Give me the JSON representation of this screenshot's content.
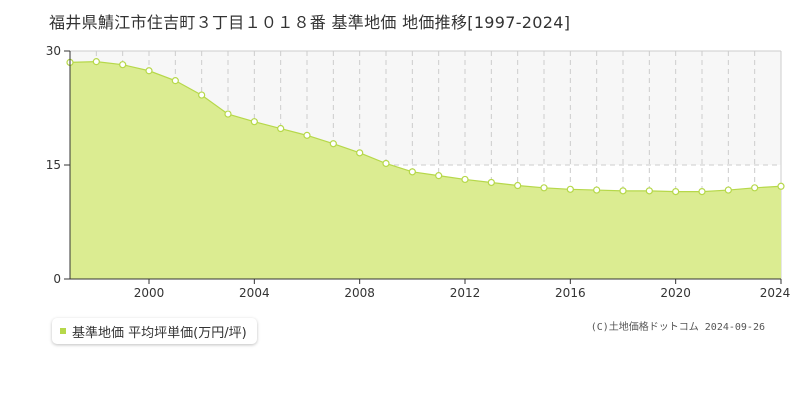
{
  "title": "福井県鯖江市住吉町３丁目１０１８番 基準地価 地価推移[1997-2024]",
  "legend_label": "基準地価 平均坪単価(万円/坪)",
  "copyright": "(C)土地価格ドットコム 2024-09-26",
  "colors": {
    "fill": "#dbec91",
    "line": "#b6d84a",
    "grid": "#cccccc",
    "band": "#f7f7f7"
  },
  "chart_data": {
    "type": "area",
    "title": "",
    "xlabel": "",
    "ylabel": "",
    "xlim": [
      1997,
      2024
    ],
    "ylim": [
      0,
      30
    ],
    "x_ticks": [
      "2000",
      "2004",
      "2008",
      "2012",
      "2016",
      "2020",
      "2024"
    ],
    "y_ticks": [
      "0",
      "15",
      "30"
    ],
    "grid": true,
    "legend_position": "bottom-left",
    "series": [
      {
        "name": "基準地価 平均坪単価(万円/坪)",
        "x": [
          1997,
          1998,
          1999,
          2000,
          2001,
          2002,
          2003,
          2004,
          2005,
          2006,
          2007,
          2008,
          2009,
          2010,
          2011,
          2012,
          2013,
          2014,
          2015,
          2016,
          2017,
          2018,
          2019,
          2020,
          2021,
          2022,
          2023,
          2024
        ],
        "values": [
          28.5,
          28.6,
          28.2,
          27.4,
          26.1,
          24.2,
          21.7,
          20.7,
          19.8,
          18.9,
          17.8,
          16.6,
          15.2,
          14.1,
          13.6,
          13.1,
          12.7,
          12.3,
          12.0,
          11.8,
          11.7,
          11.6,
          11.6,
          11.5,
          11.5,
          11.7,
          12.0,
          12.2
        ]
      }
    ]
  }
}
